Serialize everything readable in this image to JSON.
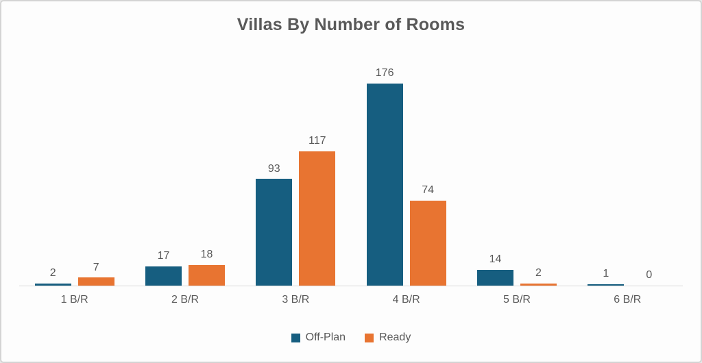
{
  "frame": {
    "background_color": "#fdfdfd",
    "border_color": "#d4d4d4",
    "text_color": "#595959",
    "axis_line_color": "#d9d9d9"
  },
  "chart_data": {
    "type": "bar",
    "title": "Villas By Number of Rooms",
    "categories": [
      "1 B/R",
      "2 B/R",
      "3 B/R",
      "4 B/R",
      "5 B/R",
      "6 B/R"
    ],
    "series": [
      {
        "name": "Off-Plan",
        "color": "#165e80",
        "values": [
          2,
          17,
          93,
          176,
          14,
          1
        ]
      },
      {
        "name": "Ready",
        "color": "#e87431",
        "values": [
          7,
          18,
          117,
          74,
          2,
          0
        ]
      }
    ],
    "value_labels": true,
    "grid": false,
    "legend_position": "bottom",
    "xlabel": "",
    "ylabel": "",
    "ylim": [
      0,
      176
    ]
  }
}
